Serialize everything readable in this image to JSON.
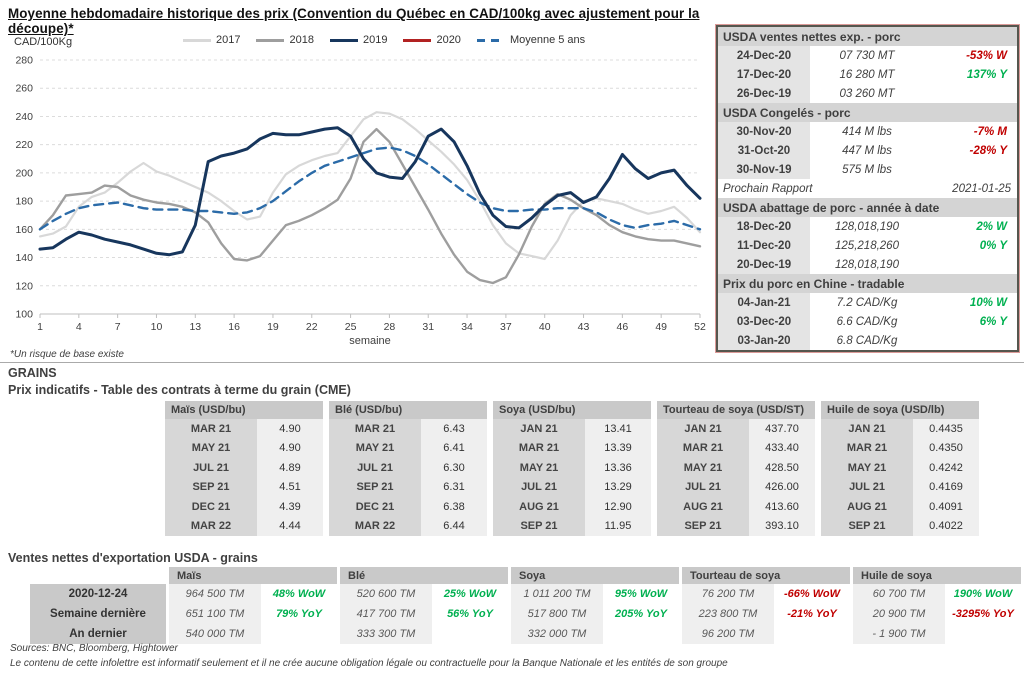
{
  "page": {
    "title": "Moyenne hebdomadaire historique des prix (Convention du Québec en CAD/100kg avec ajustement pour la découpe)*",
    "footnote": "*Un risque de base existe",
    "sources": "Sources: BNC, Bloomberg, Hightower",
    "disclaimer": "Le contenu de cette infolettre est informatif seulement et il ne crée aucune obligation légale ou contractuelle pour la Banque Nationale et les entités de son groupe"
  },
  "colors": {
    "positive": "#00b050",
    "negative": "#c00000",
    "navy": "#17365d",
    "red2020": "#b22222",
    "blue_avg": "#2b6ba8",
    "gray2018": "#9e9e9e",
    "gray2017": "#d8d8d8"
  },
  "chart_data": {
    "type": "line",
    "title": "Moyenne hebdomadaire historique des prix (Convention du Québec en CAD/100kg avec ajustement pour la découpe)*",
    "ylabel": "CAD/100Kg",
    "xlabel": "semaine",
    "ylim": [
      100,
      280
    ],
    "yticks": [
      100,
      120,
      140,
      160,
      180,
      200,
      220,
      240,
      260,
      280
    ],
    "xticks": [
      1,
      4,
      7,
      10,
      13,
      16,
      19,
      22,
      25,
      28,
      31,
      34,
      37,
      40,
      43,
      46,
      49,
      52
    ],
    "grid": "horizontal-dashed",
    "legend_position": "top",
    "x_range": [
      1,
      52
    ],
    "series": [
      {
        "name": "2017",
        "color": "#d8d8d8",
        "style": "solid",
        "values": [
          155,
          157,
          162,
          176,
          183,
          186,
          193,
          201,
          207,
          201,
          198,
          194,
          190,
          186,
          180,
          173,
          167,
          169,
          186,
          199,
          205,
          209,
          212,
          214,
          226,
          238,
          243,
          242,
          238,
          231,
          223,
          215,
          206,
          195,
          180,
          163,
          150,
          143,
          141,
          139,
          152,
          170,
          180,
          182,
          180,
          178,
          174,
          171,
          173,
          176,
          168,
          158
        ]
      },
      {
        "name": "2018",
        "color": "#9e9e9e",
        "style": "solid",
        "values": [
          160,
          170,
          184,
          185,
          186,
          191,
          190,
          184,
          181,
          179,
          178,
          176,
          172,
          165,
          150,
          139,
          138,
          141,
          152,
          163,
          166,
          170,
          175,
          181,
          196,
          222,
          231,
          222,
          206,
          190,
          174,
          157,
          142,
          130,
          124,
          122,
          126,
          142,
          162,
          178,
          185,
          181,
          175,
          170,
          163,
          158,
          155,
          153,
          152,
          152,
          150,
          148
        ]
      },
      {
        "name": "2019",
        "color": "#17365d",
        "style": "solid",
        "values": [
          146,
          147,
          153,
          158,
          156,
          153,
          151,
          149,
          146,
          143,
          142,
          144,
          163,
          208,
          212,
          214,
          217,
          224,
          228,
          227,
          227,
          229,
          231,
          232,
          226,
          210,
          200,
          197,
          196,
          208,
          226,
          231,
          222,
          205,
          185,
          170,
          162,
          161,
          168,
          177,
          184,
          186,
          179,
          183,
          196,
          213,
          203,
          196,
          200,
          202,
          191,
          182
        ]
      },
      {
        "name": "2020",
        "color": "#b22222",
        "style": "solid",
        "values": []
      },
      {
        "name": "Moyenne 5 ans",
        "color": "#2b6ba8",
        "style": "dashed",
        "values": [
          160,
          166,
          171,
          175,
          177,
          178,
          179,
          177,
          175,
          174,
          174,
          174,
          173,
          173,
          172,
          171,
          172,
          175,
          180,
          187,
          194,
          200,
          205,
          208,
          211,
          214,
          217,
          218,
          216,
          212,
          206,
          199,
          192,
          185,
          179,
          175,
          173,
          173,
          174,
          174,
          175,
          175,
          175,
          172,
          167,
          163,
          161,
          163,
          164,
          166,
          163,
          160
        ]
      }
    ]
  },
  "usda_panel": {
    "sections": [
      {
        "title": "USDA ventes nettes exp. - porc",
        "rows": [
          {
            "date": "24-Dec-20",
            "value": "07 730  MT",
            "change": "-53% W",
            "change_color": "#c00000"
          },
          {
            "date": "17-Dec-20",
            "value": "16 280  MT",
            "change": "137% Y",
            "change_color": "#00b050"
          },
          {
            "date": "26-Dec-19",
            "value": "03 260  MT",
            "change": "",
            "change_color": ""
          }
        ]
      },
      {
        "title": "USDA Congelés - porc",
        "rows": [
          {
            "date": "30-Nov-20",
            "value": "414 M lbs",
            "change": "-7% M",
            "change_color": "#c00000"
          },
          {
            "date": "31-Oct-20",
            "value": "447 M lbs",
            "change": "-28% Y",
            "change_color": "#c00000"
          },
          {
            "date": "30-Nov-19",
            "value": "575 M lbs",
            "change": "",
            "change_color": ""
          }
        ],
        "footer_label": "Prochain Rapport",
        "footer_value": "2021-01-25"
      },
      {
        "title": "USDA abattage de porc - année à date",
        "rows": [
          {
            "date": "18-Dec-20",
            "value": "128,018,190",
            "change": "2% W",
            "change_color": "#00b050"
          },
          {
            "date": "11-Dec-20",
            "value": "125,218,260",
            "change": "0% Y",
            "change_color": "#00b050"
          },
          {
            "date": "20-Dec-19",
            "value": "128,018,190",
            "change": "",
            "change_color": ""
          }
        ]
      },
      {
        "title": "Prix du porc en Chine - tradable",
        "rows": [
          {
            "date": "04-Jan-21",
            "value": "7.2 CAD/Kg",
            "change": "10% W",
            "change_color": "#00b050"
          },
          {
            "date": "03-Dec-20",
            "value": "6.6 CAD/Kg",
            "change": "6% Y",
            "change_color": "#00b050"
          },
          {
            "date": "03-Jan-20",
            "value": "6.8 CAD/Kg",
            "change": "",
            "change_color": ""
          }
        ]
      }
    ]
  },
  "grains": {
    "section_label": "GRAINS",
    "futures_title": "Prix indicatifs - Table des contrats à terme du grain (CME)",
    "futures": [
      {
        "header": "Maïs (USD/bu)",
        "rows": [
          [
            "MAR 21",
            "4.90"
          ],
          [
            "MAY 21",
            "4.90"
          ],
          [
            "JUL 21",
            "4.89"
          ],
          [
            "SEP 21",
            "4.51"
          ],
          [
            "DEC 21",
            "4.39"
          ],
          [
            "MAR 22",
            "4.44"
          ]
        ]
      },
      {
        "header": "Blé (USD/bu)",
        "rows": [
          [
            "MAR 21",
            "6.43"
          ],
          [
            "MAY 21",
            "6.41"
          ],
          [
            "JUL 21",
            "6.30"
          ],
          [
            "SEP 21",
            "6.31"
          ],
          [
            "DEC 21",
            "6.38"
          ],
          [
            "MAR 22",
            "6.44"
          ]
        ]
      },
      {
        "header": "Soya (USD/bu)",
        "rows": [
          [
            "JAN 21",
            "13.41"
          ],
          [
            "MAR 21",
            "13.39"
          ],
          [
            "MAY 21",
            "13.36"
          ],
          [
            "JUL 21",
            "13.29"
          ],
          [
            "AUG 21",
            "12.90"
          ],
          [
            "SEP 21",
            "11.95"
          ]
        ]
      },
      {
        "header": "Tourteau de soya (USD/ST)",
        "rows": [
          [
            "JAN 21",
            "437.70"
          ],
          [
            "MAR 21",
            "433.40"
          ],
          [
            "MAY 21",
            "428.50"
          ],
          [
            "JUL 21",
            "426.00"
          ],
          [
            "AUG 21",
            "413.60"
          ],
          [
            "SEP 21",
            "393.10"
          ]
        ]
      },
      {
        "header": "Huile de soya (USD/lb)",
        "rows": [
          [
            "JAN 21",
            "0.4435"
          ],
          [
            "MAR 21",
            "0.4350"
          ],
          [
            "MAY 21",
            "0.4242"
          ],
          [
            "JUL 21",
            "0.4169"
          ],
          [
            "AUG 21",
            "0.4091"
          ],
          [
            "SEP 21",
            "0.4022"
          ]
        ]
      }
    ],
    "exports_title": "Ventes nettes d'exportation USDA - grains",
    "exports": {
      "row_labels": [
        "2020-12-24",
        "Semaine dernière",
        "An dernier"
      ],
      "columns": [
        {
          "name": "Maïs",
          "cells": [
            [
              "964 500 TM",
              "48% WoW",
              "#00b050"
            ],
            [
              "651 100 TM",
              "79% YoY",
              "#00b050"
            ],
            [
              "540 000 TM",
              "",
              ""
            ]
          ]
        },
        {
          "name": "Blé",
          "cells": [
            [
              "520 600 TM",
              "25% WoW",
              "#00b050"
            ],
            [
              "417 700 TM",
              "56% YoY",
              "#00b050"
            ],
            [
              "333 300 TM",
              "",
              ""
            ]
          ]
        },
        {
          "name": "Soya",
          "cells": [
            [
              "1 011 200 TM",
              "95% WoW",
              "#00b050"
            ],
            [
              "517 800 TM",
              "205% YoY",
              "#00b050"
            ],
            [
              "332 000 TM",
              "",
              ""
            ]
          ]
        },
        {
          "name": "Tourteau de soya",
          "cells": [
            [
              "76 200 TM",
              "-66% WoW",
              "#c00000"
            ],
            [
              "223 800 TM",
              "-21% YoY",
              "#c00000"
            ],
            [
              "96 200 TM",
              "",
              ""
            ]
          ]
        },
        {
          "name": "Huile de soya",
          "cells": [
            [
              "60 700 TM",
              "190% WoW",
              "#00b050"
            ],
            [
              "20 900 TM",
              "-3295% YoY",
              "#c00000"
            ],
            [
              "- 1 900 TM",
              "",
              ""
            ]
          ]
        }
      ]
    }
  }
}
